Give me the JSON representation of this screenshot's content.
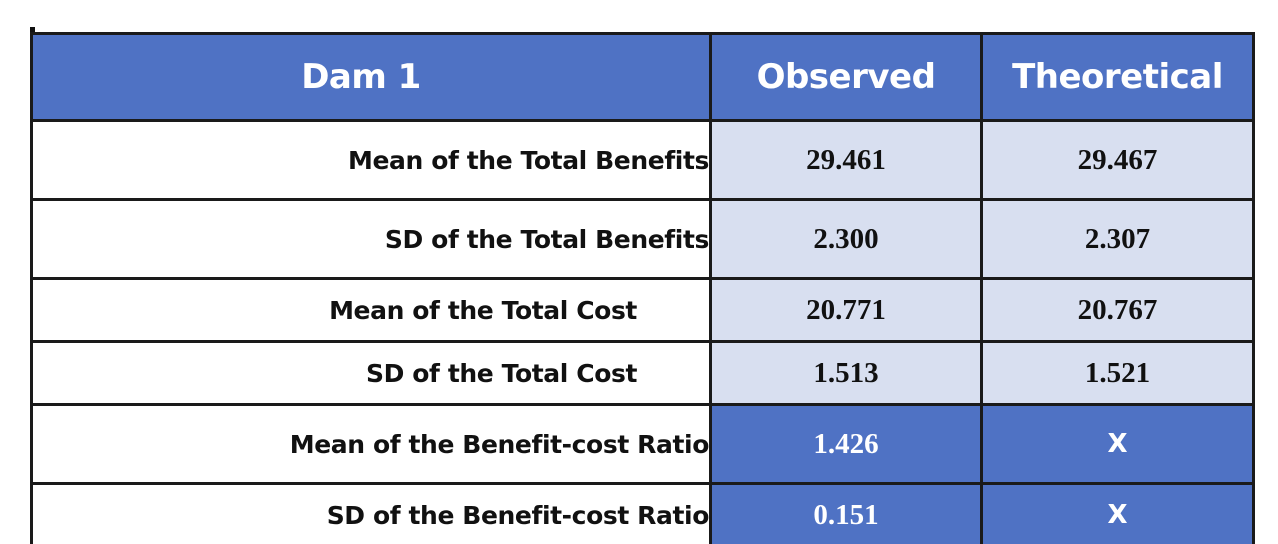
{
  "table": {
    "columns": [
      "Dam 1",
      "Observed",
      "Theoretical"
    ],
    "rows": [
      {
        "label": "Mean of the Total Benefits",
        "observed": "29.461",
        "theoretical": "29.467"
      },
      {
        "label": "SD of the Total Benefits",
        "observed": "2.300",
        "theoretical": "2.307"
      },
      {
        "label": "Mean of the Total Cost",
        "observed": "20.771",
        "theoretical": "20.767"
      },
      {
        "label": "SD of the Total Cost",
        "observed": "1.513",
        "theoretical": "1.521"
      },
      {
        "label": "Mean of the Benefit-cost Ratio",
        "observed": "1.426",
        "theoretical": "X"
      },
      {
        "label": "SD of the Benefit-cost Ratio",
        "observed": "0.151",
        "theoretical": "X"
      }
    ]
  },
  "colors": {
    "header_bg": "#4f72c4",
    "value_bg": "#d8dff0",
    "border": "#1a1a1a"
  }
}
